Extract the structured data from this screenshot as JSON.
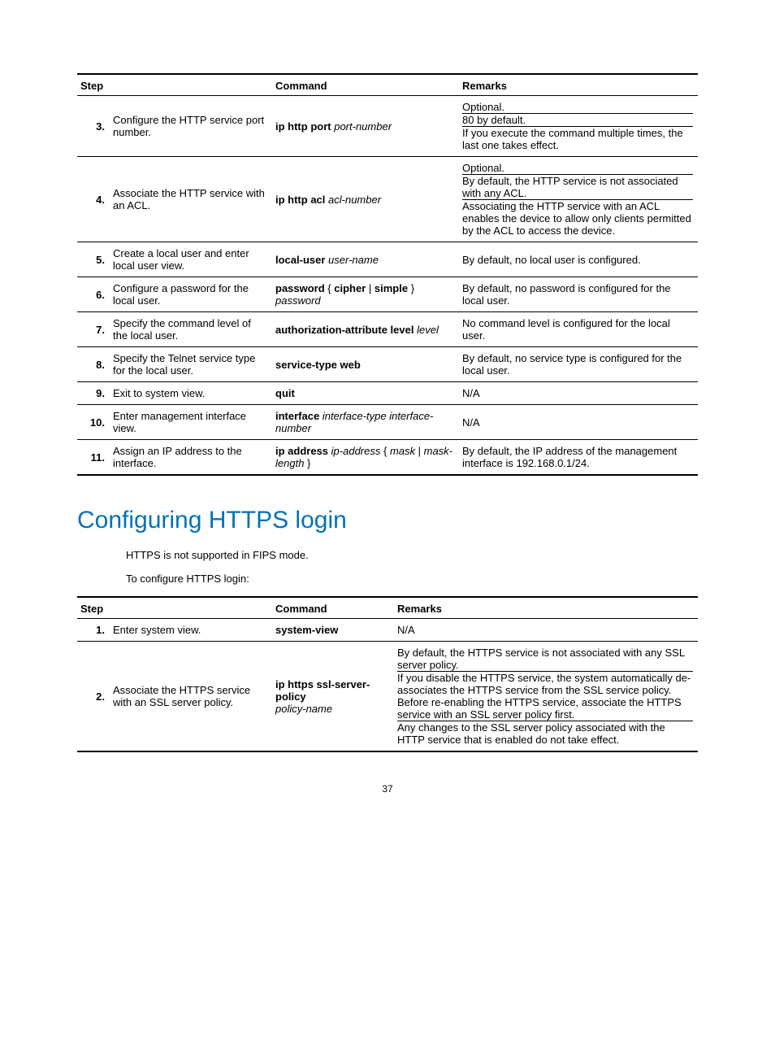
{
  "colors": {
    "heading": "#0073b5",
    "text": "#000000",
    "bg": "#ffffff",
    "rule": "#000000"
  },
  "table1": {
    "headers": {
      "step": "Step",
      "command": "Command",
      "remarks": "Remarks"
    },
    "rows": [
      {
        "num": "3.",
        "desc": "Configure the HTTP service port number.",
        "cmd_bold": "ip http port",
        "cmd_ital": "port-number",
        "rem_a": "Optional.",
        "rem_b": "80 by default.",
        "rem_c": "If you execute the command multiple times, the last one takes effect."
      },
      {
        "num": "4.",
        "desc": "Associate the HTTP service with an ACL.",
        "cmd_bold": "ip http acl",
        "cmd_ital": "acl-number",
        "rem_a": "Optional.",
        "rem_b": "By default, the HTTP service is not associated with any ACL.",
        "rem_c": "Associating the HTTP service with an ACL enables the device to allow only clients permitted by the ACL to access the device."
      },
      {
        "num": "5.",
        "desc": "Create a local user and enter local user view.",
        "cmd_bold": "local-user",
        "cmd_ital": "user-name",
        "rem": "By default, no local user is configured."
      },
      {
        "num": "6.",
        "desc": "Configure a password for the local user.",
        "cmd_bold_1": "password",
        "cmd_plain_1": " { ",
        "cmd_bold_2": "cipher",
        "cmd_plain_2": " | ",
        "cmd_bold_3": "simple",
        "cmd_plain_3": " } ",
        "cmd_ital": "password",
        "rem": "By default, no password is configured for the local user."
      },
      {
        "num": "7.",
        "desc": "Specify the command level of the local user.",
        "cmd_bold": "authorization-attribute level",
        "cmd_ital": "level",
        "rem": "No command level is configured for the local user."
      },
      {
        "num": "8.",
        "desc": "Specify the Telnet service type for the local user.",
        "cmd_bold": "service-type web",
        "rem": "By default, no service type is configured for the local user."
      },
      {
        "num": "9.",
        "desc": "Exit to system view.",
        "cmd_bold": "quit",
        "rem": "N/A"
      },
      {
        "num": "10.",
        "desc": "Enter management interface view.",
        "cmd_bold": "interface",
        "cmd_ital": "interface-type interface-number",
        "rem": "N/A"
      },
      {
        "num": "11.",
        "desc": "Assign an IP address to the interface.",
        "cmd_bold": "ip address",
        "cmd_ital_1": "ip-address",
        "cmd_plain_1": " { ",
        "cmd_ital_2": "mask",
        "cmd_plain_2": " | ",
        "cmd_ital_3": "mask-length",
        "cmd_plain_3": " }",
        "rem": "By default, the IP address of the management interface is 192.168.0.1/24."
      }
    ]
  },
  "section_heading": "Configuring HTTPS login",
  "body_line1": "HTTPS is not supported in FIPS mode.",
  "body_line2": "To configure HTTPS login:",
  "table2": {
    "headers": {
      "step": "Step",
      "command": "Command",
      "remarks": "Remarks"
    },
    "rows": [
      {
        "num": "1.",
        "desc": "Enter system view.",
        "cmd_bold": "system-view",
        "rem": "N/A"
      },
      {
        "num": "2.",
        "desc": "Associate the HTTPS service with an SSL server policy.",
        "cmd_bold_1": "ip https ssl-server-policy",
        "cmd_ital": "policy-name",
        "rem_a": "By default, the HTTPS service is not associated with any SSL server policy.",
        "rem_b": "If you disable the HTTPS service, the system automatically de-associates the HTTPS service from the SSL service policy. Before re-enabling the HTTPS service, associate the HTTPS service with an SSL server policy first.",
        "rem_c": "Any changes to the SSL server policy associated with the HTTP service that is enabled do not take effect."
      }
    ]
  },
  "page_number": "37"
}
